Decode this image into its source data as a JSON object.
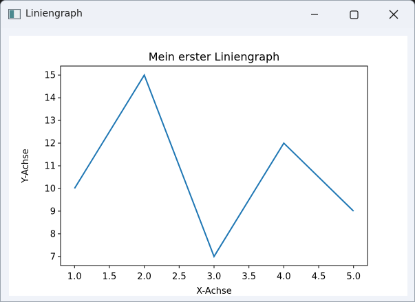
{
  "window": {
    "title": "Liniengraph",
    "app_icon": "python-figure-icon",
    "controls": {
      "minimize": "minimize-icon",
      "maximize": "maximize-icon",
      "close": "close-icon"
    }
  },
  "chart_data": {
    "type": "line",
    "title": "Mein erster Liniengraph",
    "xlabel": "X-Achse",
    "ylabel": "Y-Achse",
    "x": [
      1,
      2,
      3,
      4,
      5
    ],
    "series": [
      {
        "values": [
          10,
          15,
          7,
          12,
          9
        ],
        "color": "#1f77b4"
      }
    ],
    "xlim": [
      0.8,
      5.2
    ],
    "ylim": [
      6.6,
      15.4
    ],
    "xticks": [
      1.0,
      1.5,
      2.0,
      2.5,
      3.0,
      3.5,
      4.0,
      4.5,
      5.0
    ],
    "xtick_labels": [
      "1.0",
      "1.5",
      "2.0",
      "2.5",
      "3.0",
      "3.5",
      "4.0",
      "4.5",
      "5.0"
    ],
    "yticks": [
      7,
      8,
      9,
      10,
      11,
      12,
      13,
      14,
      15
    ],
    "ytick_labels": [
      "7",
      "8",
      "9",
      "10",
      "11",
      "12",
      "13",
      "14",
      "15"
    ],
    "grid": false,
    "legend": false
  }
}
